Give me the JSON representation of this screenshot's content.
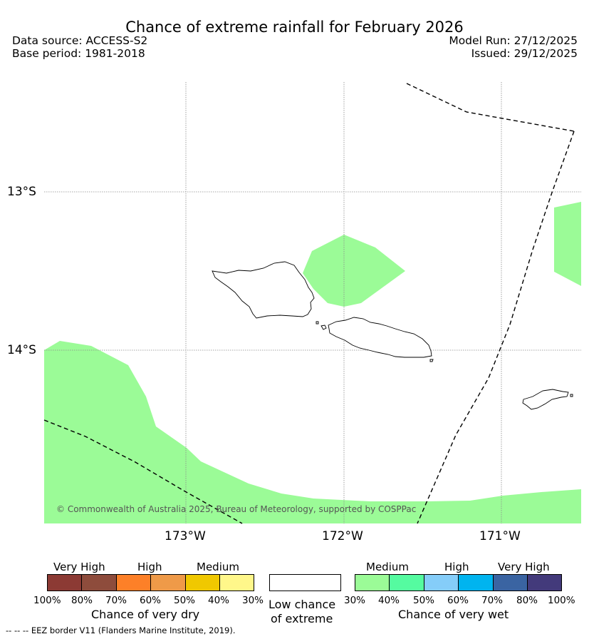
{
  "header": {
    "title": "Chance of extreme rainfall for February 2026",
    "data_source": "Data source: ACCESS-S2",
    "base_period": "Base period: 1981-2018",
    "model_run": "Model Run: 27/12/2025",
    "issued": "Issued: 29/12/2025"
  },
  "map": {
    "lat_labels": [
      "13°S",
      "14°S"
    ],
    "lon_labels": [
      "173°W",
      "172°W",
      "171°W"
    ],
    "credit": "© Commonwealth of Australia 2025, Bureau of Meteorology, supported by COSPPac",
    "wet_area_color": "#9bfb97",
    "wet_area_category": "Medium (30%-40%) chance of very wet"
  },
  "legend": {
    "dry": {
      "groups": [
        "Very High",
        "High",
        "Medium"
      ],
      "ticks": [
        "100%",
        "80%",
        "70%",
        "60%",
        "50%",
        "40%",
        "30%"
      ],
      "colors": [
        "#8c3a34",
        "#8e4c3c",
        "#fd8028",
        "#ef9a48",
        "#f0c800",
        "#fff78a"
      ],
      "caption": "Chance of very dry"
    },
    "neutral": {
      "caption_line1": "Low chance",
      "caption_line2": "of extreme",
      "color": "#ffffff"
    },
    "wet": {
      "groups": [
        "Medium",
        "High",
        "Very High"
      ],
      "ticks": [
        "30%",
        "40%",
        "50%",
        "60%",
        "70%",
        "80%",
        "100%"
      ],
      "colors": [
        "#9bfb97",
        "#55fba0",
        "#85cdf9",
        "#00b4ef",
        "#3a64a2",
        "#433a7b"
      ],
      "caption": "Chance of very wet"
    }
  },
  "footer": {
    "eez_note": "--  --  -- EEZ border V11 (Flanders Marine Institute, 2019)."
  }
}
